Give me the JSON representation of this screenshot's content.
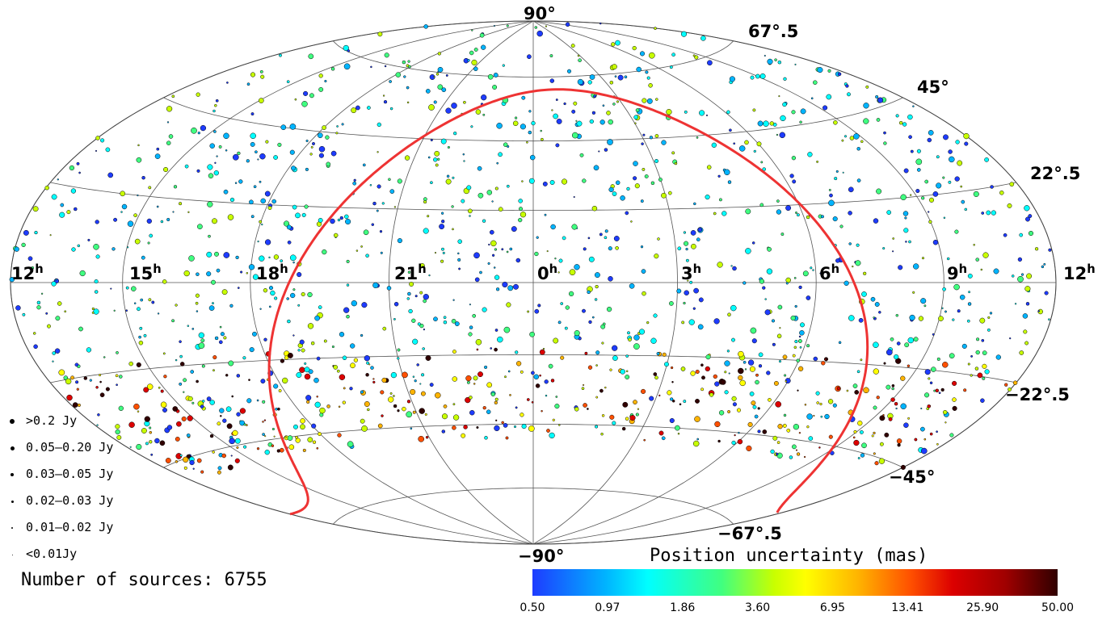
{
  "map": {
    "projection": "Aitoff-Hammer all-sky, equatorial coordinates",
    "ra_labels": [
      {
        "text": "12",
        "sup": "h",
        "ra": 12
      },
      {
        "text": "15",
        "sup": "h",
        "ra": 15
      },
      {
        "text": "18",
        "sup": "h",
        "ra": 18
      },
      {
        "text": "21",
        "sup": "h",
        "ra": 21
      },
      {
        "text": "0",
        "sup": "h",
        "ra": 0
      },
      {
        "text": "3",
        "sup": "h",
        "ra": 3
      },
      {
        "text": "6",
        "sup": "h",
        "ra": 6
      },
      {
        "text": "9",
        "sup": "h",
        "ra": 9
      },
      {
        "text": "12",
        "sup": "h",
        "ra": 12
      }
    ],
    "dec_labels": [
      {
        "text": "90°",
        "dec": 90
      },
      {
        "text": "67°.5",
        "dec": 67.5
      },
      {
        "text": "45°",
        "dec": 45
      },
      {
        "text": "22°.5",
        "dec": 22.5
      },
      {
        "text": "−22°.5",
        "dec": -22.5
      },
      {
        "text": "−45°",
        "dec": -45
      },
      {
        "text": "−67°.5",
        "dec": -67.5
      },
      {
        "text": "−90°",
        "dec": -90
      }
    ],
    "galactic_plane_color": "#ee3333",
    "source_count": 6755,
    "marker_palette": [
      "#1e3cff",
      "#00b4ff",
      "#00ffff",
      "#40ff80",
      "#c8ff00",
      "#ffff00",
      "#ffb400",
      "#ff5000",
      "#dc0000",
      "#300000"
    ]
  },
  "legend": {
    "items": [
      {
        "label": ">0.2 Jy",
        "size": 6
      },
      {
        "label": "0.05–0.20 Jy",
        "size": 5
      },
      {
        "label": "0.03–0.05 Jy",
        "size": 4
      },
      {
        "label": "0.02–0.03 Jy",
        "size": 3
      },
      {
        "label": "0.01–0.02 Jy",
        "size": 2
      },
      {
        "label": "<0.01Jy",
        "size": 1
      }
    ],
    "count_text": "Number of sources: 6755"
  },
  "colorbar": {
    "title": "Position uncertainty (mas)",
    "ticks": [
      "0.50",
      "0.97",
      "1.86",
      "3.60",
      "6.95",
      "13.41",
      "25.90",
      "50.00"
    ]
  }
}
